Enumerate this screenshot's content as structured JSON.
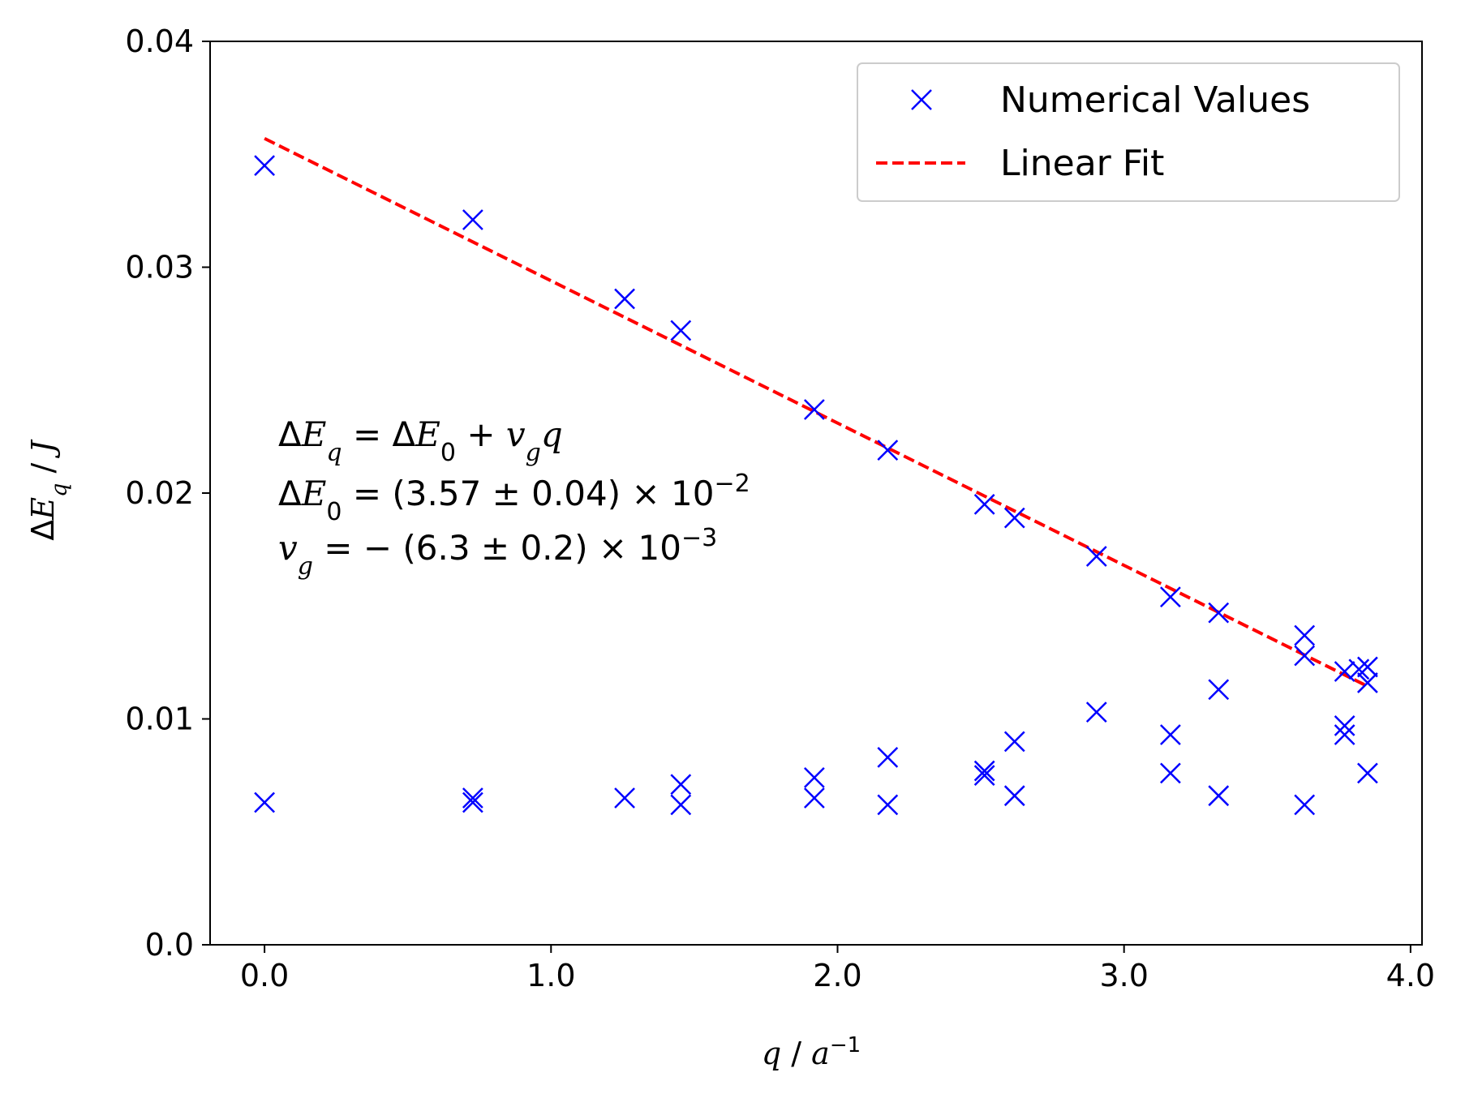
{
  "chart_data": {
    "type": "scatter",
    "xlabel": "q / a⁻¹",
    "ylabel": "ΔE_q / J",
    "xlim": [
      -0.19,
      4.04
    ],
    "ylim": [
      0.0,
      0.04
    ],
    "x_ticks": [
      0.0,
      1.0,
      2.0,
      3.0,
      4.0
    ],
    "x_tick_labels": [
      "0.0",
      "1.0",
      "2.0",
      "3.0",
      "4.0"
    ],
    "y_ticks": [
      0.0,
      0.01,
      0.02,
      0.03,
      0.04
    ],
    "y_tick_labels": [
      "0.0",
      "0.01",
      "0.02",
      "0.03",
      "0.04"
    ],
    "grid": false,
    "legend_position": "top-right",
    "series": [
      {
        "name": "Numerical Values",
        "type": "scatter",
        "marker": "x",
        "color": "#0000ff",
        "points": [
          [
            0.0,
            0.0345
          ],
          [
            0.0,
            0.0063
          ],
          [
            0.727,
            0.0321
          ],
          [
            0.727,
            0.0065
          ],
          [
            0.727,
            0.0063
          ],
          [
            1.257,
            0.0286
          ],
          [
            1.257,
            0.0065
          ],
          [
            1.453,
            0.0272
          ],
          [
            1.453,
            0.0071
          ],
          [
            1.453,
            0.0062
          ],
          [
            1.919,
            0.0237
          ],
          [
            1.919,
            0.0074
          ],
          [
            1.919,
            0.0065
          ],
          [
            2.175,
            0.0219
          ],
          [
            2.175,
            0.0083
          ],
          [
            2.175,
            0.0062
          ],
          [
            2.513,
            0.0195
          ],
          [
            2.513,
            0.0077
          ],
          [
            2.513,
            0.0075
          ],
          [
            2.618,
            0.0189
          ],
          [
            2.618,
            0.009
          ],
          [
            2.618,
            0.0066
          ],
          [
            2.904,
            0.0172
          ],
          [
            2.904,
            0.0103
          ],
          [
            3.162,
            0.0154
          ],
          [
            3.162,
            0.0093
          ],
          [
            3.162,
            0.0076
          ],
          [
            3.33,
            0.0147
          ],
          [
            3.33,
            0.0113
          ],
          [
            3.33,
            0.0066
          ],
          [
            3.63,
            0.0137
          ],
          [
            3.63,
            0.0128
          ],
          [
            3.63,
            0.0062
          ],
          [
            3.77,
            0.0121
          ],
          [
            3.77,
            0.0097
          ],
          [
            3.77,
            0.0093
          ],
          [
            3.82,
            0.0122
          ],
          [
            3.85,
            0.0123
          ],
          [
            3.85,
            0.0116
          ],
          [
            3.85,
            0.0076
          ]
        ]
      },
      {
        "name": "Linear Fit",
        "type": "line",
        "style": "dashed",
        "color": "#ff0000",
        "intercept": 0.0357,
        "slope": -0.0063,
        "x_range": [
          0.0,
          3.85
        ]
      }
    ],
    "annotation": {
      "line1": {
        "a": "ΔE",
        "b": "q",
        "c": " = ΔE",
        "d": "0",
        "e": " + v",
        "f": "g",
        "g": "q"
      },
      "line2": {
        "a": "ΔE",
        "b": "0",
        "c": " = (3.57 ± 0.04) × 10",
        "d": "−2"
      },
      "line3": {
        "a": "v",
        "b": "g",
        "c": " = − (6.3 ± 0.2) × 10",
        "d": "−3"
      }
    }
  }
}
